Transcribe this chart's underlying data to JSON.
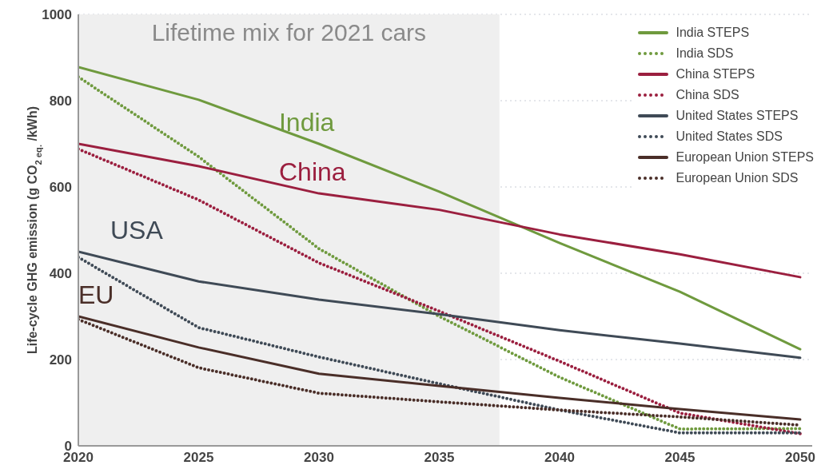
{
  "chart_data": {
    "type": "line",
    "ylabel": "Life-cycle GHG emission (g CO$_{2 eq.}$ /kWh)",
    "x": [
      2020,
      2025,
      2030,
      2035,
      2040,
      2045,
      2050
    ],
    "xlim": [
      2020,
      2050.5
    ],
    "xticks": [
      2020,
      2025,
      2030,
      2035,
      2040,
      2045,
      2050
    ],
    "ylim": [
      0,
      1000
    ],
    "yticks": [
      0,
      200,
      400,
      600,
      800,
      1000
    ],
    "grid": "y",
    "legend": "top right",
    "marker": "none",
    "bands": [
      {
        "axis": "x",
        "from": 2020,
        "to": 2037.5,
        "label": "Lifetime mix for 2021 cars",
        "color": "#efefef"
      }
    ],
    "annotations": [
      "India",
      "China",
      "USA",
      "EU"
    ],
    "series": [
      {
        "name": "India STEPS",
        "color": "#6f9a3e",
        "line_style": "solid",
        "values": [
          878,
          802,
          700,
          589,
          470,
          357,
          224
        ]
      },
      {
        "name": "India SDS",
        "color": "#6f9a3e",
        "line_style": "dotted",
        "values": [
          855,
          670,
          457,
          300,
          159,
          39,
          40
        ]
      },
      {
        "name": "China STEPS",
        "color": "#9b1f3f",
        "line_style": "solid",
        "values": [
          700,
          648,
          585,
          547,
          490,
          444,
          391
        ]
      },
      {
        "name": "China SDS",
        "color": "#9b1f3f",
        "line_style": "dotted",
        "values": [
          688,
          570,
          424,
          312,
          196,
          76,
          28
        ]
      },
      {
        "name": "United States STEPS",
        "color": "#3f4a56",
        "line_style": "solid",
        "values": [
          450,
          381,
          339,
          305,
          268,
          237,
          204
        ]
      },
      {
        "name": "United States SDS",
        "color": "#3f4a56",
        "line_style": "dotted",
        "values": [
          437,
          274,
          206,
          144,
          83,
          30,
          30
        ]
      },
      {
        "name": "European Union STEPS",
        "color": "#4a2e28",
        "line_style": "solid",
        "values": [
          300,
          228,
          167,
          139,
          111,
          85,
          61
        ]
      },
      {
        "name": "European Union SDS",
        "color": "#4a2e28",
        "line_style": "dotted",
        "values": [
          293,
          181,
          122,
          102,
          83,
          67,
          48
        ]
      }
    ]
  }
}
